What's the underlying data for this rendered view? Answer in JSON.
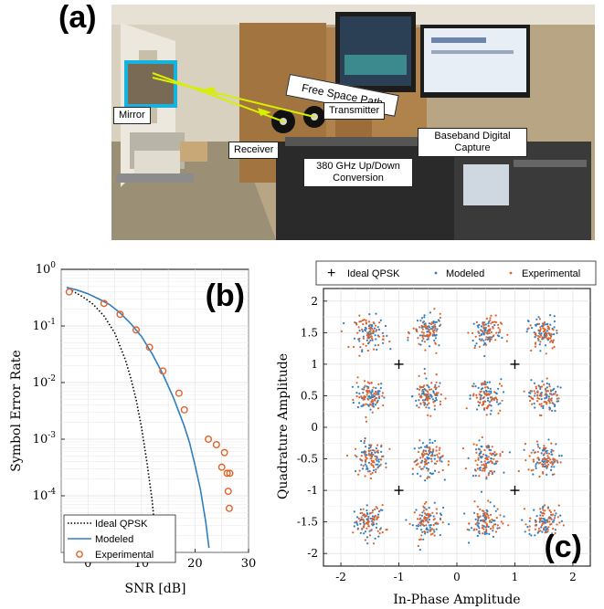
{
  "panel_a": {
    "letter": "(a)",
    "labels": {
      "free_space_path": "Free Space Path",
      "mirror": "Mirror",
      "transmitter": "Transmitter",
      "receiver": "Receiver",
      "baseband_line1": "Baseband Digital",
      "baseband_line2": "Capture",
      "updown_line1": "380 GHz Up/Down",
      "updown_line2": "Conversion"
    }
  },
  "panel_b": {
    "letter": "(b)",
    "chart_data": {
      "type": "line",
      "xlabel": "SNR [dB]",
      "ylabel": "Symbol Error Rate",
      "xlim": [
        -5,
        30
      ],
      "ylim_log10": [
        -5,
        0
      ],
      "y_scale": "log",
      "grid": true,
      "legend_placement": "bottom-left",
      "x_ticks": [
        "0",
        "10",
        "20",
        "30"
      ],
      "y_ticks": [
        "10^0",
        "10^-1",
        "10^-2",
        "10^-3",
        "10^-4"
      ],
      "series": [
        {
          "name": "Ideal QPSK",
          "style": "dotted",
          "color": "#000000",
          "x": [
            -3,
            -1,
            1,
            3,
            5,
            7,
            8,
            9,
            10,
            11,
            12,
            12.6,
            13
          ],
          "y": [
            0.42,
            0.33,
            0.24,
            0.15,
            0.075,
            0.025,
            0.012,
            0.005,
            0.0016,
            0.0004,
            8e-05,
            2e-05,
            1e-05
          ]
        },
        {
          "name": "Modeled",
          "style": "solid",
          "color": "#2f7fc1",
          "x": [
            -4,
            -2,
            0,
            2,
            4,
            6,
            8,
            10,
            12,
            14,
            16,
            18,
            19,
            20,
            21,
            22,
            22.6
          ],
          "y": [
            0.48,
            0.43,
            0.37,
            0.3,
            0.24,
            0.17,
            0.11,
            0.065,
            0.032,
            0.014,
            0.0053,
            0.0017,
            0.00085,
            0.00035,
            0.00013,
            3.5e-05,
            1.2e-05
          ]
        },
        {
          "name": "Experimental",
          "style": "markers",
          "color": "#e0622a",
          "x": [
            -3.5,
            3,
            6,
            9,
            11.5,
            14,
            17,
            18,
            22.5,
            24,
            25.5,
            25,
            26,
            26.5,
            26.2,
            26.4
          ],
          "y": [
            0.4,
            0.25,
            0.16,
            0.085,
            0.042,
            0.016,
            0.0065,
            0.0033,
            0.001,
            0.0008,
            0.00058,
            0.00032,
            0.00025,
            0.00025,
            0.00012,
            6e-05
          ]
        }
      ]
    }
  },
  "panel_c": {
    "letter": "(c)",
    "chart_data": {
      "type": "scatter",
      "xlabel": "In-Phase Amplitude",
      "ylabel": "Quadrature Amplitude",
      "xlim": [
        -2.3,
        2.3
      ],
      "ylim": [
        -2.2,
        2.2
      ],
      "grid": true,
      "legend_placement": "top",
      "x_ticks": [
        "-2",
        "-1",
        "0",
        "1",
        "2"
      ],
      "y_ticks": [
        "2",
        "1.5",
        "1",
        "0.5",
        "0",
        "-0.5",
        "-1",
        "-1.5",
        "-2"
      ],
      "ideal_points": [
        [
          -1,
          1
        ],
        [
          1,
          1
        ],
        [
          -1,
          -1
        ],
        [
          1,
          -1
        ]
      ],
      "cluster_centers": [
        -1.5,
        -0.5,
        0.5,
        1.5
      ],
      "series": [
        {
          "name": "Ideal QPSK",
          "marker": "plus",
          "color": "#000000"
        },
        {
          "name": "Modeled",
          "marker": "dot",
          "color": "#2f7fc1"
        },
        {
          "name": "Experimental",
          "marker": "dot",
          "color": "#e0622a"
        }
      ]
    }
  }
}
